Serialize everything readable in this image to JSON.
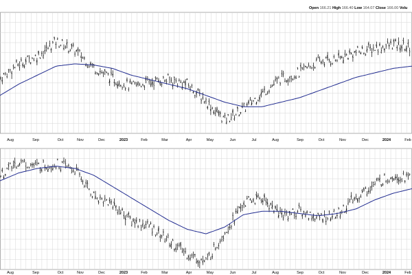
{
  "header": {
    "items": [
      {
        "label": "Open",
        "value": "166.21"
      },
      {
        "label": "High",
        "value": "166.40"
      },
      {
        "label": "Low",
        "value": "164.07"
      },
      {
        "label": "Close",
        "value": "166.00"
      },
      {
        "label": "Volu",
        "value": ""
      }
    ]
  },
  "colors": {
    "price": "#000000",
    "moving_average": "#1f2a8f",
    "grid": "#d6d6d6",
    "frame": "#9a9a9a"
  },
  "chart_data": [
    {
      "type": "line",
      "price_style": "ohlc-bars",
      "x_tick_labels": [
        "Aug",
        "Sep",
        "Oct",
        "Nov",
        "Dec",
        "2023",
        "Feb",
        "Mar",
        "Apr",
        "May",
        "Jun",
        "Jul",
        "Aug",
        "Sep",
        "Oct",
        "Nov",
        "Dec",
        "2024",
        "Feb"
      ],
      "x": [
        0,
        4,
        8,
        12,
        16,
        20,
        24,
        28,
        32,
        36,
        40,
        44,
        48,
        52,
        56,
        60,
        64,
        68,
        72,
        76,
        80,
        84,
        88
      ],
      "y_unit": "relative price level (no y-axis labels shown)",
      "y_range": [
        0,
        100
      ],
      "series": [
        {
          "role": "price",
          "values": [
            45,
            58,
            65,
            78,
            70,
            55,
            45,
            38,
            42,
            44,
            40,
            25,
            8,
            18,
            32,
            45,
            50,
            60,
            62,
            68,
            72,
            75,
            72
          ]
        },
        {
          "role": "moving-average",
          "values": [
            30,
            40,
            48,
            56,
            58,
            57,
            54,
            48,
            44,
            40,
            36,
            30,
            24,
            20,
            20,
            24,
            28,
            34,
            40,
            46,
            50,
            54,
            56
          ]
        }
      ]
    },
    {
      "type": "line",
      "price_style": "ohlc-bars",
      "x_tick_labels": [
        "Aug",
        "Sep",
        "Oct",
        "Nov",
        "Dec",
        "2023",
        "Feb",
        "Mar",
        "Apr",
        "May",
        "Jun",
        "Jul",
        "Aug",
        "Sep",
        "Oct",
        "Nov",
        "Dec",
        "2024",
        "Feb"
      ],
      "x": [
        0,
        4,
        8,
        12,
        16,
        20,
        24,
        28,
        32,
        36,
        40,
        44,
        48,
        52,
        56,
        60,
        64,
        68,
        72,
        76,
        80,
        84,
        88
      ],
      "y_unit": "relative price level (no y-axis labels shown)",
      "y_range": [
        0,
        100
      ],
      "series": [
        {
          "role": "price",
          "values": [
            80,
            92,
            88,
            90,
            85,
            62,
            55,
            40,
            35,
            22,
            10,
            3,
            30,
            55,
            60,
            45,
            48,
            42,
            45,
            60,
            72,
            80,
            78
          ]
        },
        {
          "role": "moving-average",
          "values": [
            75,
            82,
            86,
            88,
            86,
            80,
            70,
            60,
            50,
            40,
            32,
            28,
            34,
            45,
            48,
            48,
            46,
            44,
            46,
            50,
            58,
            64,
            68
          ]
        }
      ]
    }
  ]
}
